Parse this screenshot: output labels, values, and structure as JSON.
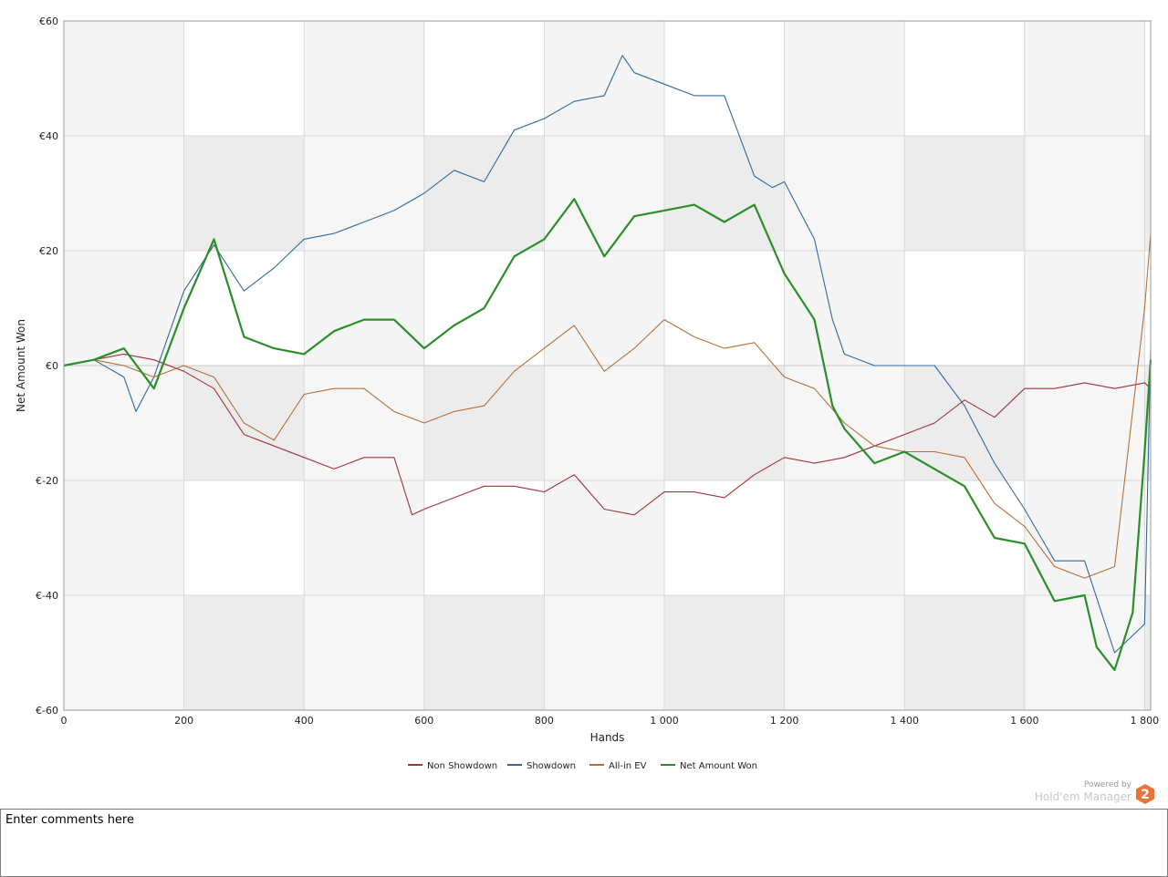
{
  "chart_data": {
    "type": "line",
    "xlabel": "Hands",
    "ylabel": "Net Amount Won",
    "xlim": [
      0,
      1810
    ],
    "ylim": [
      -60,
      60
    ],
    "x_ticks": [
      0,
      200,
      400,
      600,
      800,
      1000,
      1200,
      1400,
      1600,
      1800
    ],
    "x_tick_labels": [
      "0",
      "200",
      "400",
      "600",
      "800",
      "1 000",
      "1 200",
      "1 400",
      "1 600",
      "1 800"
    ],
    "y_ticks": [
      60,
      40,
      20,
      0,
      -20,
      -40,
      -60
    ],
    "y_tick_labels": [
      "€60",
      "€40",
      "€20",
      "€0",
      "€-20",
      "€-40",
      "€-60"
    ],
    "grid": true,
    "legend_position": "bottom",
    "series": [
      {
        "name": "Non Showdown",
        "color": "#a0343a",
        "x": [
          0,
          50,
          100,
          150,
          200,
          250,
          300,
          350,
          400,
          450,
          500,
          550,
          580,
          600,
          650,
          700,
          750,
          800,
          850,
          900,
          950,
          1000,
          1050,
          1100,
          1150,
          1200,
          1250,
          1300,
          1350,
          1400,
          1450,
          1500,
          1550,
          1600,
          1650,
          1700,
          1750,
          1800,
          1810
        ],
        "y": [
          0,
          1,
          2,
          1,
          -1,
          -4,
          -12,
          -14,
          -16,
          -18,
          -16,
          -16,
          -26,
          -25,
          -23,
          -21,
          -21,
          -22,
          -19,
          -25,
          -26,
          -22,
          -22,
          -23,
          -19,
          -16,
          -17,
          -16,
          -14,
          -12,
          -10,
          -6,
          -9,
          -4,
          -4,
          -3,
          -4,
          -3,
          -4
        ]
      },
      {
        "name": "Showdown",
        "color": "#2f6aa0",
        "x": [
          0,
          50,
          100,
          120,
          150,
          200,
          250,
          300,
          350,
          400,
          450,
          500,
          550,
          600,
          650,
          700,
          750,
          800,
          850,
          900,
          930,
          950,
          1000,
          1050,
          1100,
          1150,
          1180,
          1200,
          1250,
          1280,
          1300,
          1350,
          1400,
          1450,
          1500,
          1550,
          1600,
          1650,
          1700,
          1750,
          1800,
          1810
        ],
        "y": [
          0,
          1,
          -2,
          -8,
          -2,
          13,
          21,
          13,
          17,
          22,
          23,
          25,
          27,
          30,
          34,
          32,
          41,
          43,
          46,
          47,
          54,
          51,
          49,
          47,
          47,
          33,
          31,
          32,
          22,
          8,
          2,
          0,
          0,
          0,
          -7,
          -17,
          -25,
          -34,
          -34,
          -50,
          -45,
          3
        ]
      },
      {
        "name": "All-in EV",
        "color": "#b5703a",
        "x": [
          0,
          50,
          100,
          150,
          200,
          250,
          300,
          350,
          400,
          450,
          500,
          550,
          600,
          650,
          700,
          750,
          800,
          850,
          900,
          950,
          1000,
          1050,
          1100,
          1150,
          1200,
          1250,
          1300,
          1350,
          1400,
          1450,
          1500,
          1550,
          1600,
          1650,
          1700,
          1750,
          1800,
          1810
        ],
        "y": [
          0,
          1,
          0,
          -2,
          0,
          -2,
          -10,
          -13,
          -5,
          -4,
          -4,
          -8,
          -10,
          -8,
          -7,
          -1,
          3,
          7,
          -1,
          3,
          8,
          5,
          3,
          4,
          -2,
          -4,
          -10,
          -14,
          -15,
          -15,
          -16,
          -24,
          -28,
          -35,
          -37,
          -35,
          10,
          23
        ]
      },
      {
        "name": "Net Amount Won",
        "color": "#2a8f28",
        "x": [
          0,
          50,
          100,
          150,
          200,
          250,
          300,
          350,
          400,
          450,
          500,
          550,
          600,
          650,
          700,
          750,
          800,
          850,
          900,
          950,
          1000,
          1050,
          1100,
          1150,
          1200,
          1250,
          1280,
          1300,
          1350,
          1400,
          1450,
          1500,
          1550,
          1600,
          1650,
          1700,
          1720,
          1750,
          1780,
          1800,
          1810
        ],
        "y": [
          0,
          1,
          3,
          -4,
          10,
          22,
          5,
          3,
          2,
          6,
          8,
          8,
          3,
          7,
          10,
          19,
          22,
          29,
          19,
          26,
          27,
          28,
          25,
          28,
          16,
          8,
          -7,
          -11,
          -17,
          -15,
          -18,
          -21,
          -30,
          -31,
          -41,
          -40,
          -49,
          -53,
          -43,
          -15,
          1
        ]
      }
    ]
  },
  "watermark": {
    "powered_by": "Powered by",
    "product": "Hold'em Manager",
    "badge": "2",
    "badge_color": "#e8743b"
  },
  "comments": {
    "placeholder": "Enter comments here"
  }
}
